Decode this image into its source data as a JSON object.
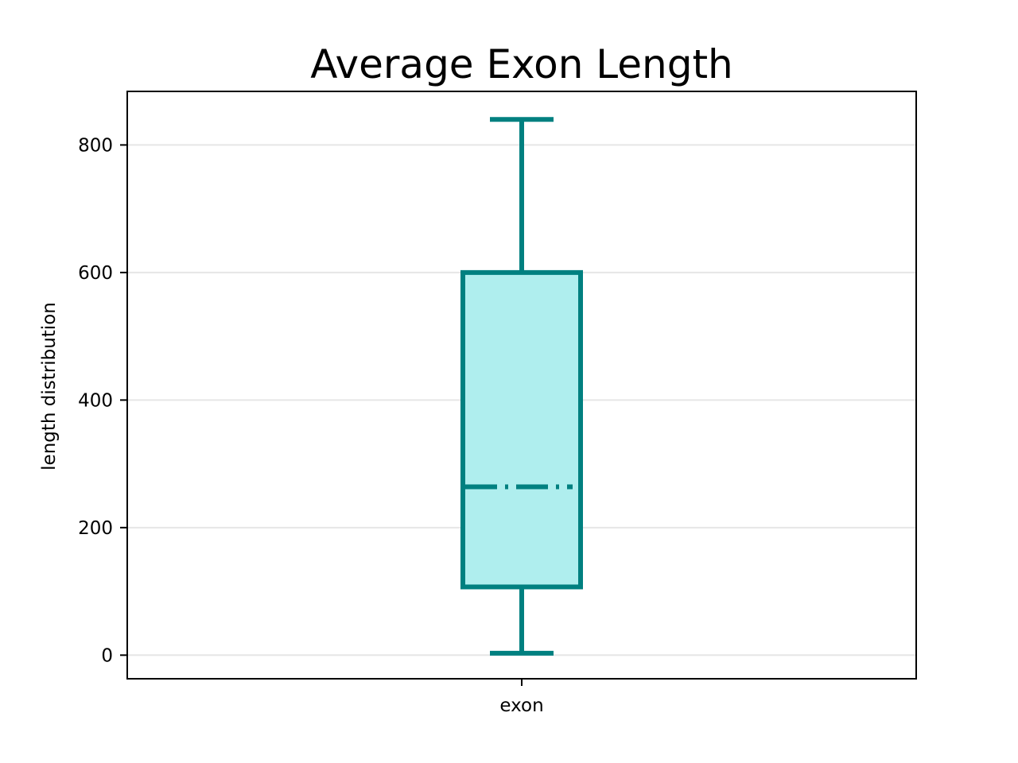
{
  "chart_data": {
    "type": "box",
    "title": "Average Exon Length",
    "xlabel": "",
    "ylabel": "length distribution",
    "categories": [
      "exon"
    ],
    "ylim": [
      -37,
      884
    ],
    "yticks": [
      0,
      200,
      400,
      600,
      800
    ],
    "grid": "y",
    "boxes": [
      {
        "category": "exon",
        "whisker_low": 3,
        "q1": 107,
        "median": 264,
        "q3": 600,
        "whisker_high": 840
      }
    ],
    "colors": {
      "edge": "#008080",
      "fill": "#afeeee",
      "grid": "#e6e6e6"
    }
  }
}
